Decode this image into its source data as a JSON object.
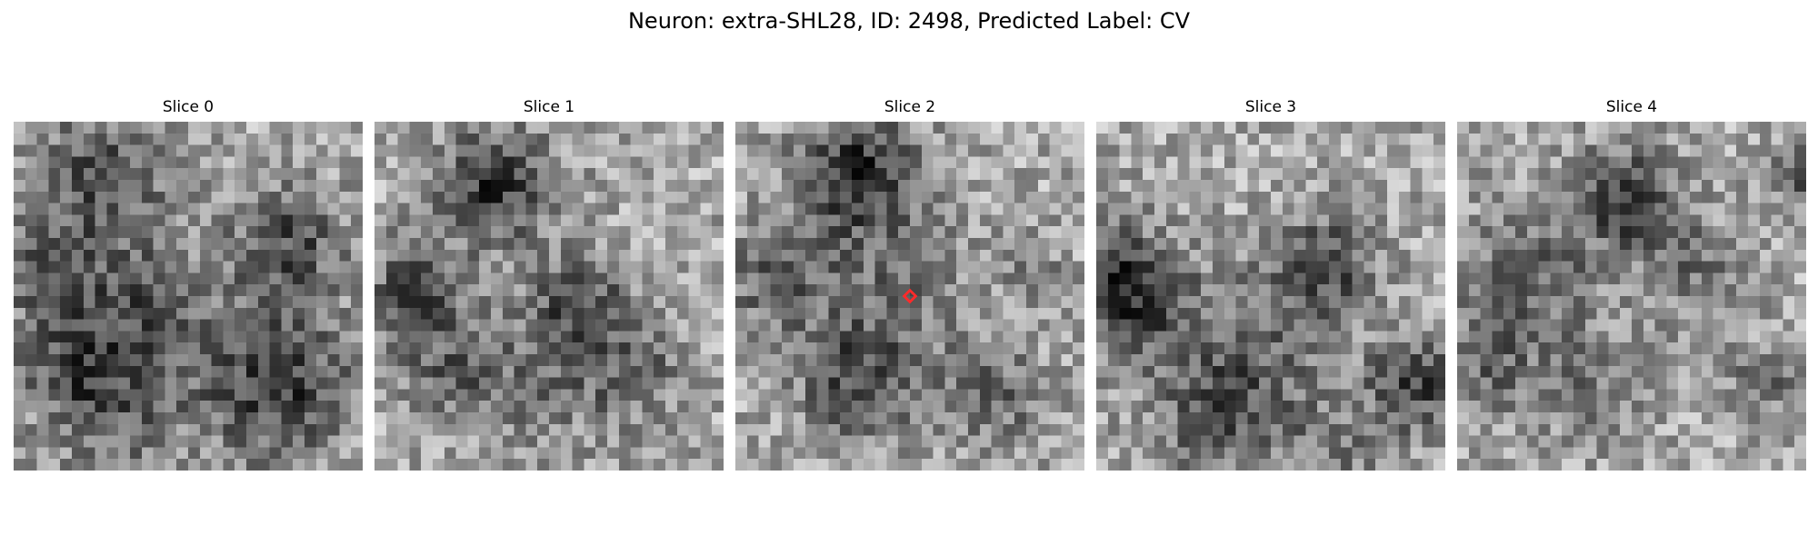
{
  "figure": {
    "title": "Neuron: extra-SHL28, ID: 2498, Predicted Label: CV"
  },
  "slices": [
    {
      "title": "Slice 0"
    },
    {
      "title": "Slice 1"
    },
    {
      "title": "Slice 2"
    },
    {
      "title": "Slice 3"
    },
    {
      "title": "Slice 4"
    }
  ],
  "colors": {
    "marker": "#ff2a2a",
    "colormap": "gray"
  },
  "marker": {
    "slice_index": 2,
    "shape": "diamond"
  }
}
